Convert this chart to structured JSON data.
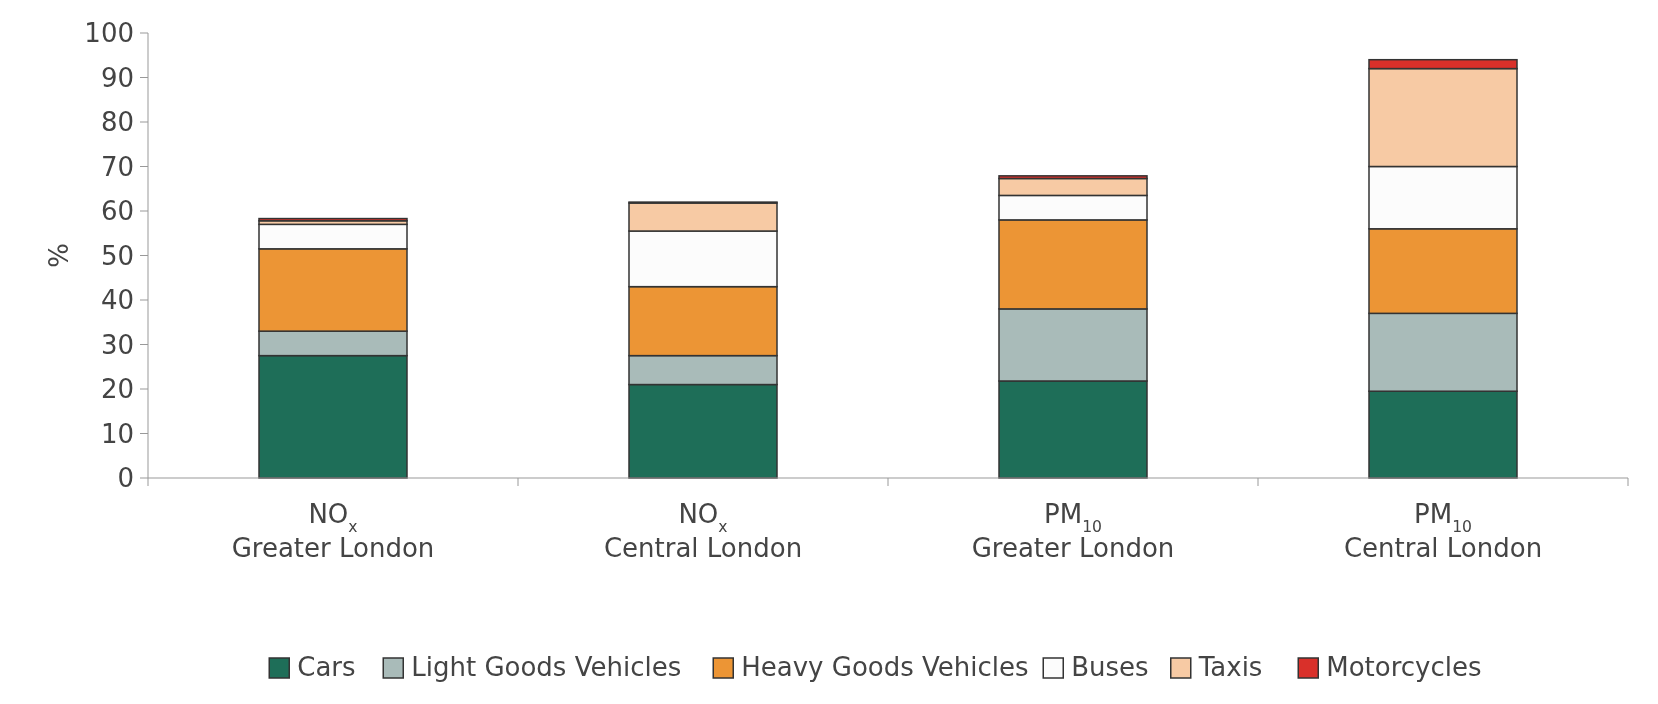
{
  "chart_data": {
    "type": "bar",
    "stacked": true,
    "ylabel": "%",
    "categories": [
      "NO$_{x}$\nGreater London",
      "NO$_{x}$\nCentral London",
      "PM$_{10}$\nGreater London",
      "PM$_{10}$\nCentral London"
    ],
    "series": [
      {
        "name": "Cars",
        "color": "#1e6e58",
        "values": [
          27.5,
          21,
          21.8,
          19.5
        ]
      },
      {
        "name": "Light Goods Vehicles",
        "color": "#a9bbb9",
        "values": [
          5.5,
          6.5,
          16.2,
          17.5
        ]
      },
      {
        "name": "Heavy Goods Vehicles",
        "color": "#ec9535",
        "values": [
          18.5,
          15.5,
          20,
          19
        ]
      },
      {
        "name": "Buses",
        "color": "#fcfcfc",
        "values": [
          5.5,
          12.5,
          5.5,
          14
        ]
      },
      {
        "name": "Taxis",
        "color": "#f7caa4",
        "values": [
          0.8,
          6.3,
          3.8,
          22
        ]
      },
      {
        "name": "Motorcycles",
        "color": "#d9302a",
        "values": [
          0.5,
          0.2,
          0.6,
          2
        ]
      }
    ],
    "ylim": [
      0,
      100
    ],
    "yticks": [
      0,
      10,
      20,
      30,
      40,
      50,
      60,
      70,
      80,
      90,
      100
    ],
    "legend": "bottom"
  }
}
